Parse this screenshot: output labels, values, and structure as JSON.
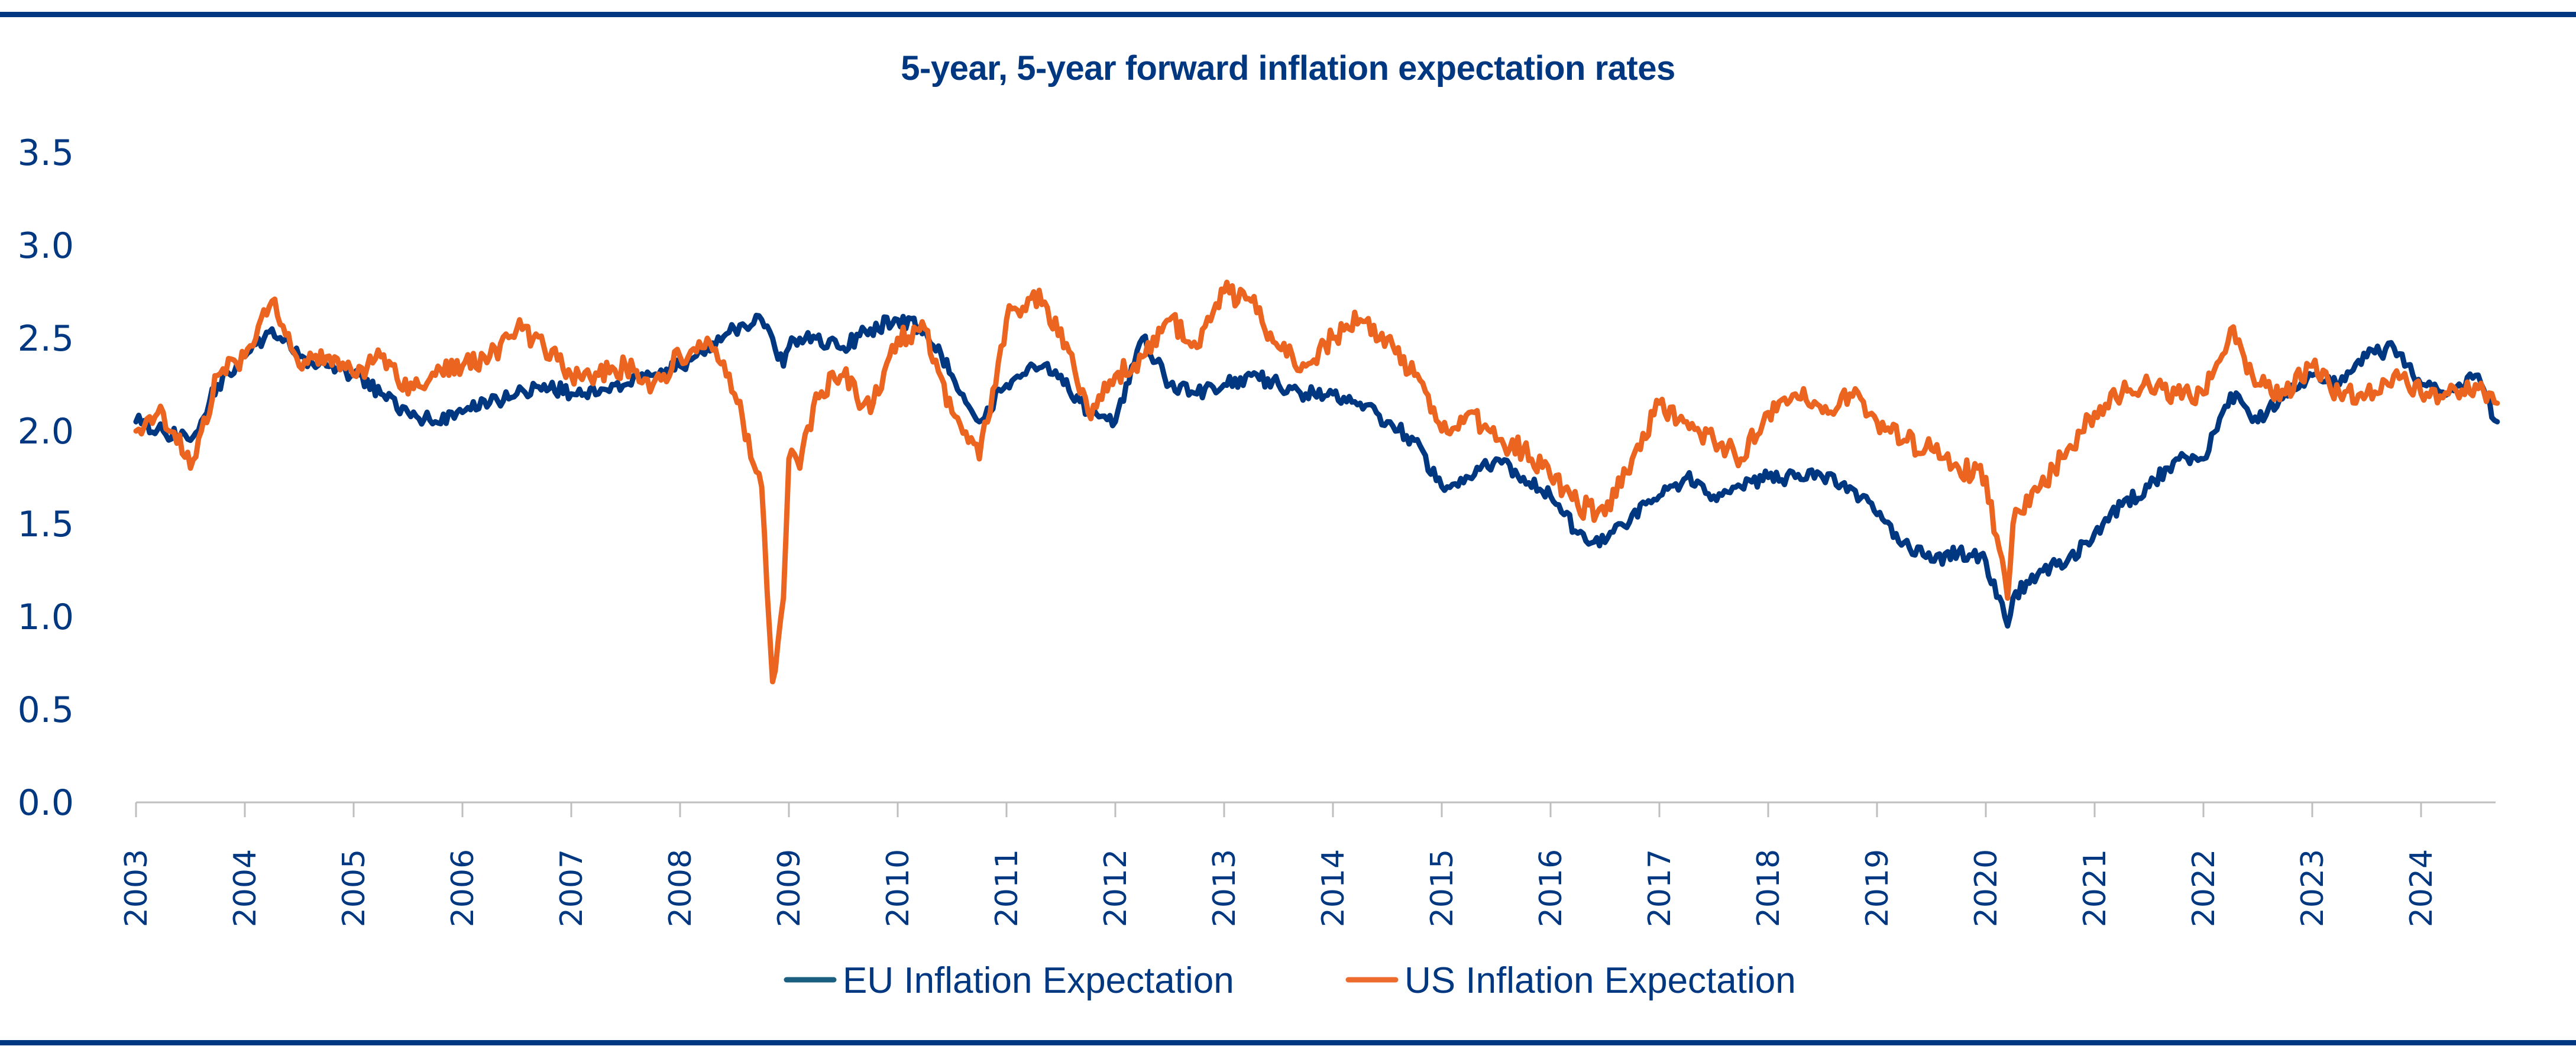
{
  "chart_data": {
    "type": "line",
    "title": "5-year, 5-year forward inflation expectation rates",
    "xlabel": "",
    "ylabel": "",
    "ylim": [
      0.0,
      3.5
    ],
    "yticks": [
      "0.0",
      "0.5",
      "1.0",
      "1.5",
      "2.0",
      "2.5",
      "3.0",
      "3.5"
    ],
    "xlim": [
      2003.0,
      2024.7
    ],
    "xticks": [
      "2003",
      "2004",
      "2005",
      "2006",
      "2007",
      "2008",
      "2009",
      "2010",
      "2011",
      "2012",
      "2013",
      "2014",
      "2015",
      "2016",
      "2017",
      "2018",
      "2019",
      "2020",
      "2021",
      "2022",
      "2023",
      "2024"
    ],
    "grid": false,
    "legend_position": "bottom-center",
    "x_frequency": "quarterly-approx",
    "x": [
      2003.0,
      2003.25,
      2003.5,
      2003.75,
      2004.0,
      2004.25,
      2004.5,
      2004.75,
      2005.0,
      2005.25,
      2005.5,
      2005.75,
      2006.0,
      2006.25,
      2006.5,
      2006.75,
      2007.0,
      2007.25,
      2007.5,
      2007.75,
      2008.0,
      2008.25,
      2008.5,
      2008.75,
      2008.85,
      2008.95,
      2009.0,
      2009.1,
      2009.25,
      2009.5,
      2009.75,
      2010.0,
      2010.25,
      2010.5,
      2010.75,
      2011.0,
      2011.25,
      2011.5,
      2011.75,
      2012.0,
      2012.25,
      2012.5,
      2012.75,
      2013.0,
      2013.25,
      2013.5,
      2013.75,
      2014.0,
      2014.25,
      2014.5,
      2014.75,
      2015.0,
      2015.25,
      2015.5,
      2015.75,
      2016.0,
      2016.25,
      2016.5,
      2016.75,
      2017.0,
      2017.25,
      2017.5,
      2017.75,
      2018.0,
      2018.25,
      2018.5,
      2018.75,
      2019.0,
      2019.25,
      2019.5,
      2019.75,
      2020.0,
      2020.2,
      2020.25,
      2020.5,
      2020.75,
      2021.0,
      2021.25,
      2021.5,
      2021.75,
      2022.0,
      2022.25,
      2022.5,
      2022.75,
      2023.0,
      2023.25,
      2023.5,
      2023.75,
      2024.0,
      2024.25,
      2024.5,
      2024.7
    ],
    "series": [
      {
        "name": "EU Inflation Expectation",
        "color": "#003781",
        "values": [
          2.05,
          2.0,
          1.95,
          2.25,
          2.4,
          2.55,
          2.4,
          2.35,
          2.3,
          2.2,
          2.1,
          2.05,
          2.1,
          2.15,
          2.2,
          2.25,
          2.2,
          2.2,
          2.25,
          2.3,
          2.35,
          2.45,
          2.55,
          2.6,
          2.5,
          2.35,
          2.45,
          2.5,
          2.5,
          2.45,
          2.55,
          2.6,
          2.55,
          2.3,
          2.05,
          2.25,
          2.35,
          2.3,
          2.1,
          2.05,
          2.5,
          2.25,
          2.2,
          2.25,
          2.3,
          2.25,
          2.2,
          2.2,
          2.15,
          2.05,
          1.95,
          1.7,
          1.75,
          1.85,
          1.75,
          1.65,
          1.45,
          1.4,
          1.55,
          1.65,
          1.75,
          1.65,
          1.7,
          1.75,
          1.75,
          1.75,
          1.7,
          1.55,
          1.4,
          1.3,
          1.35,
          1.3,
          0.95,
          1.1,
          1.25,
          1.3,
          1.45,
          1.6,
          1.7,
          1.85,
          1.85,
          2.2,
          2.05,
          2.2,
          2.3,
          2.25,
          2.4,
          2.45,
          2.25,
          2.2,
          2.3,
          2.05
        ]
      },
      {
        "name": "US Inflation Expectation",
        "color": "#ec6520",
        "values": [
          2.0,
          2.1,
          1.8,
          2.3,
          2.4,
          2.7,
          2.35,
          2.4,
          2.3,
          2.4,
          2.2,
          2.3,
          2.35,
          2.4,
          2.55,
          2.45,
          2.3,
          2.3,
          2.35,
          2.25,
          2.4,
          2.5,
          2.2,
          1.7,
          0.65,
          1.1,
          1.85,
          1.8,
          2.2,
          2.3,
          2.1,
          2.5,
          2.55,
          2.1,
          1.85,
          2.6,
          2.75,
          2.55,
          2.1,
          2.3,
          2.4,
          2.6,
          2.45,
          2.75,
          2.7,
          2.45,
          2.35,
          2.5,
          2.6,
          2.5,
          2.3,
          2.0,
          2.1,
          1.95,
          1.9,
          1.75,
          1.6,
          1.55,
          1.85,
          2.15,
          2.05,
          1.95,
          1.85,
          2.1,
          2.2,
          2.1,
          2.2,
          2.05,
          1.95,
          1.9,
          1.8,
          1.75,
          1.1,
          1.5,
          1.7,
          1.9,
          2.1,
          2.2,
          2.25,
          2.2,
          2.2,
          2.55,
          2.25,
          2.2,
          2.35,
          2.2,
          2.2,
          2.3,
          2.2,
          2.2,
          2.25,
          2.15
        ]
      }
    ]
  }
}
